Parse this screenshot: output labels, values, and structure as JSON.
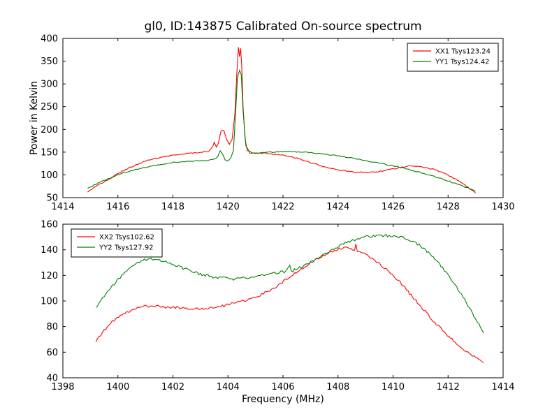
{
  "figure": {
    "title": "gl0, ID:143875 Calibrated On-source spectrum",
    "background": "#ffffff",
    "axes_color": "#000000"
  },
  "chart_data": [
    {
      "type": "line",
      "title": "gl0, ID:143875 Calibrated On-source spectrum",
      "xlabel": "",
      "ylabel": "Power in Kelvin",
      "xlim": [
        1414,
        1430
      ],
      "ylim": [
        50,
        400
      ],
      "xticks": [
        1414,
        1416,
        1418,
        1420,
        1422,
        1424,
        1426,
        1428,
        1430
      ],
      "yticks": [
        50,
        100,
        150,
        200,
        250,
        300,
        350,
        400
      ],
      "grid": false,
      "legend_position": "top-right",
      "noise": 1.2,
      "series": [
        {
          "name": "XX1 Tsys123.24",
          "color": "#ff0000",
          "x": [
            1414.9,
            1415.2,
            1415.6,
            1416.0,
            1416.5,
            1417.0,
            1417.5,
            1418.0,
            1418.5,
            1419.0,
            1419.3,
            1419.45,
            1419.5,
            1419.58,
            1419.65,
            1419.75,
            1419.85,
            1419.95,
            1420.05,
            1420.15,
            1420.25,
            1420.32,
            1420.38,
            1420.42,
            1420.46,
            1420.5,
            1420.55,
            1420.62,
            1420.7,
            1421.0,
            1421.5,
            1422.0,
            1422.5,
            1423.0,
            1423.5,
            1424.0,
            1424.5,
            1425.0,
            1425.5,
            1426.0,
            1426.5,
            1427.0,
            1427.5,
            1428.0,
            1428.5,
            1429.0
          ],
          "y": [
            62,
            75,
            88,
            103,
            118,
            130,
            138,
            143,
            147,
            150,
            152,
            163,
            172,
            162,
            170,
            196,
            198,
            178,
            168,
            178,
            235,
            320,
            380,
            360,
            378,
            340,
            250,
            180,
            152,
            148,
            147,
            143,
            137,
            127,
            118,
            111,
            107,
            105,
            107,
            113,
            119,
            118,
            112,
            100,
            82,
            60
          ]
        },
        {
          "name": "YY1 Tsys124.42",
          "color": "#008000",
          "x": [
            1414.9,
            1415.3,
            1415.8,
            1416.2,
            1416.8,
            1417.4,
            1418.0,
            1418.6,
            1419.2,
            1419.5,
            1419.62,
            1419.72,
            1419.8,
            1419.9,
            1420.0,
            1420.1,
            1420.2,
            1420.28,
            1420.35,
            1420.42,
            1420.48,
            1420.55,
            1420.65,
            1420.8,
            1421.0,
            1421.5,
            1422.0,
            1422.5,
            1423.0,
            1423.5,
            1424.0,
            1424.5,
            1425.0,
            1425.5,
            1426.0,
            1426.5,
            1427.0,
            1427.5,
            1428.0,
            1428.5,
            1429.0
          ],
          "y": [
            70,
            83,
            95,
            104,
            114,
            121,
            127,
            130,
            132,
            134,
            140,
            152,
            146,
            133,
            130,
            136,
            155,
            240,
            315,
            330,
            320,
            240,
            165,
            148,
            147,
            150,
            151,
            151,
            149,
            146,
            142,
            137,
            131,
            126,
            120,
            113,
            105,
            96,
            87,
            76,
            65
          ]
        }
      ]
    },
    {
      "type": "line",
      "title": "",
      "xlabel": "Frequency (MHz)",
      "ylabel": "",
      "xlim": [
        1398,
        1414
      ],
      "ylim": [
        40,
        160
      ],
      "xticks": [
        1398,
        1400,
        1402,
        1404,
        1406,
        1408,
        1410,
        1412,
        1414
      ],
      "yticks": [
        40,
        60,
        80,
        100,
        120,
        140,
        160
      ],
      "grid": false,
      "legend_position": "top-left",
      "noise": 1.0,
      "series": [
        {
          "name": "XX2 Tsys102.62",
          "color": "#ff0000",
          "x": [
            1399.2,
            1399.5,
            1399.8,
            1400.2,
            1400.6,
            1401.0,
            1401.4,
            1401.8,
            1402.2,
            1402.6,
            1403.0,
            1403.4,
            1403.8,
            1404.2,
            1404.6,
            1405.0,
            1405.4,
            1405.8,
            1406.2,
            1406.6,
            1407.0,
            1407.4,
            1407.8,
            1408.1,
            1408.4,
            1408.6,
            1408.65,
            1408.7,
            1409.0,
            1409.4,
            1409.8,
            1410.2,
            1410.6,
            1411.0,
            1411.4,
            1411.8,
            1412.2,
            1412.6,
            1413.0,
            1413.3
          ],
          "y": [
            68,
            77,
            84,
            90,
            94,
            96,
            96,
            95,
            95,
            94,
            94,
            95,
            96,
            98,
            100,
            103,
            107,
            112,
            118,
            124,
            130,
            135,
            139,
            141,
            142,
            140,
            145,
            139,
            136,
            131,
            124,
            116,
            106,
            96,
            86,
            77,
            69,
            62,
            56,
            52
          ]
        },
        {
          "name": "YY2 Tsys127.92",
          "color": "#008000",
          "x": [
            1399.2,
            1399.5,
            1399.8,
            1400.2,
            1400.6,
            1400.9,
            1401.2,
            1401.5,
            1401.8,
            1402.2,
            1402.6,
            1403.0,
            1403.4,
            1403.8,
            1404.2,
            1404.6,
            1405.0,
            1405.4,
            1405.8,
            1406.1,
            1406.25,
            1406.3,
            1406.6,
            1407.0,
            1407.4,
            1407.8,
            1408.2,
            1408.6,
            1409.0,
            1409.4,
            1409.8,
            1410.2,
            1410.6,
            1411.0,
            1411.4,
            1411.8,
            1412.2,
            1412.6,
            1413.0,
            1413.3
          ],
          "y": [
            95,
            104,
            112,
            121,
            128,
            132,
            133,
            132,
            130,
            127,
            124,
            121,
            119,
            118,
            117,
            118,
            119,
            121,
            122,
            123,
            128,
            123,
            126,
            130,
            135,
            140,
            145,
            148,
            150,
            151,
            151,
            150,
            148,
            143,
            136,
            126,
            114,
            101,
            86,
            75
          ]
        }
      ]
    }
  ]
}
